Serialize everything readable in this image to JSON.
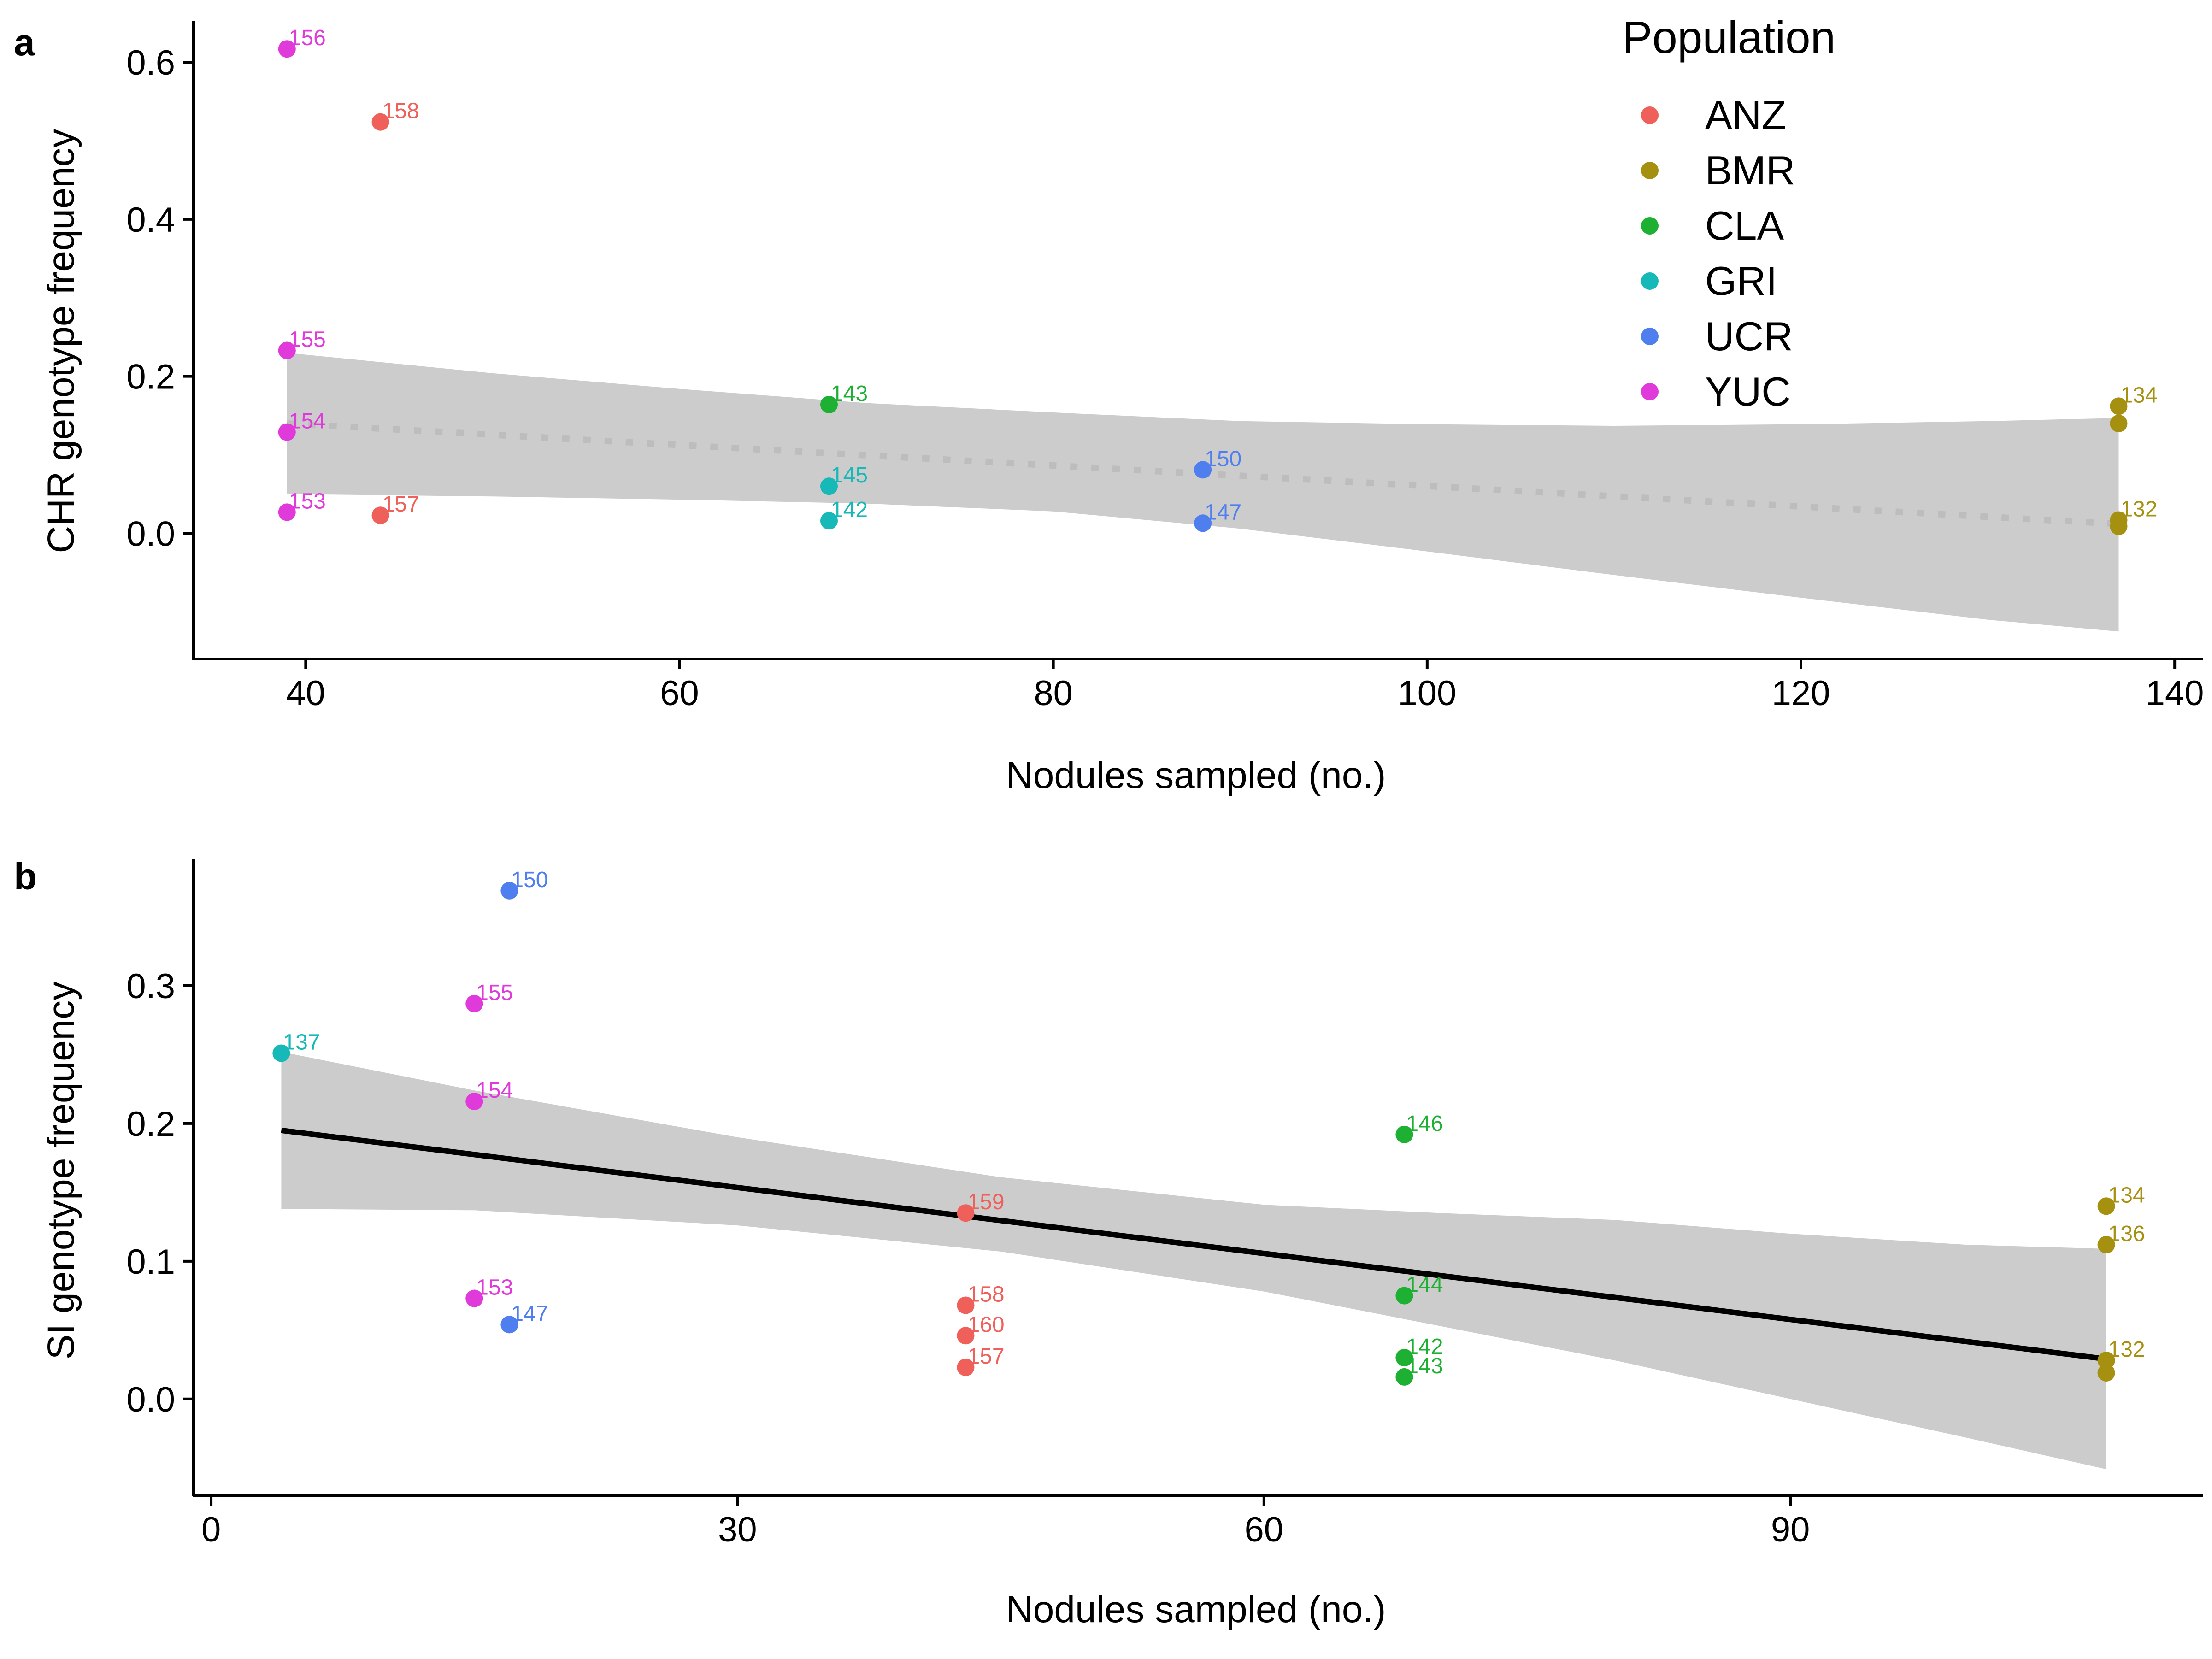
{
  "legend": {
    "title": "Population",
    "entries": [
      {
        "name": "ANZ",
        "color": "#F0605A"
      },
      {
        "name": "BMR",
        "color": "#A6900F"
      },
      {
        "name": "CLA",
        "color": "#1DB033"
      },
      {
        "name": "GRI",
        "color": "#17B8B8"
      },
      {
        "name": "UCR",
        "color": "#4F7EEE"
      },
      {
        "name": "YUC",
        "color": "#E13ADB"
      }
    ]
  },
  "chart_data": [
    {
      "type": "scatter",
      "panel": "a",
      "xlabel": "Nodules sampled (no.)",
      "ylabel": "CHR genotype frequency",
      "xlim": [
        34,
        141.5
      ],
      "ylim": [
        -0.16,
        0.65
      ],
      "xticks": [
        40,
        60,
        80,
        100,
        120,
        140
      ],
      "yticks": [
        0.0,
        0.2,
        0.4,
        0.6
      ],
      "ytick_labels": [
        "0.0",
        "0.2",
        "0.4",
        "0.6"
      ],
      "grid": false,
      "legend_position": "top-right",
      "points": [
        {
          "label": "156",
          "population": "YUC",
          "x": 39,
          "y": 0.617
        },
        {
          "label": "158",
          "population": "ANZ",
          "x": 44,
          "y": 0.524
        },
        {
          "label": "155",
          "population": "YUC",
          "x": 39,
          "y": 0.233
        },
        {
          "label": "154",
          "population": "YUC",
          "x": 39,
          "y": 0.129
        },
        {
          "label": "153",
          "population": "YUC",
          "x": 39,
          "y": 0.027
        },
        {
          "label": "157",
          "population": "ANZ",
          "x": 44,
          "y": 0.023
        },
        {
          "label": "143",
          "population": "CLA",
          "x": 68,
          "y": 0.164
        },
        {
          "label": "145",
          "population": "GRI",
          "x": 68,
          "y": 0.06
        },
        {
          "label": "142",
          "population": "GRI",
          "x": 68,
          "y": 0.016
        },
        {
          "label": "150",
          "population": "UCR",
          "x": 88,
          "y": 0.081
        },
        {
          "label": "147",
          "population": "UCR",
          "x": 88,
          "y": 0.013
        },
        {
          "label": "134",
          "population": "BMR",
          "x": 137,
          "y": 0.162
        },
        {
          "label": "",
          "population": "BMR",
          "x": 137,
          "y": 0.14
        },
        {
          "label": "132",
          "population": "BMR",
          "x": 137,
          "y": 0.017
        },
        {
          "label": "",
          "population": "BMR",
          "x": 137,
          "y": 0.009
        }
      ],
      "fit": {
        "style": "dotted",
        "color": "#bdbdbd",
        "x": [
          39,
          137
        ],
        "y": [
          0.14,
          0.012
        ]
      },
      "ci_band": {
        "color": "#cccccc",
        "x": [
          39,
          50,
          60,
          70,
          80,
          90,
          100,
          110,
          120,
          130,
          137
        ],
        "lower": [
          0.05,
          0.047,
          0.043,
          0.038,
          0.028,
          0.006,
          -0.023,
          -0.053,
          -0.082,
          -0.11,
          -0.125
        ],
        "upper": [
          0.23,
          0.204,
          0.184,
          0.166,
          0.154,
          0.143,
          0.139,
          0.137,
          0.139,
          0.143,
          0.147
        ]
      }
    },
    {
      "type": "scatter",
      "panel": "b",
      "xlabel": "Nodules sampled (no.)",
      "ylabel": "SI genotype frequency",
      "xlim": [
        -1,
        113.5
      ],
      "ylim": [
        -0.07,
        0.39
      ],
      "xticks": [
        0,
        30,
        60,
        90
      ],
      "yticks": [
        0.0,
        0.1,
        0.2,
        0.3
      ],
      "ytick_labels": [
        "0.0",
        "0.1",
        "0.2",
        "0.3"
      ],
      "grid": false,
      "points": [
        {
          "label": "150",
          "population": "UCR",
          "x": 17,
          "y": 0.369
        },
        {
          "label": "155",
          "population": "YUC",
          "x": 15,
          "y": 0.287
        },
        {
          "label": "137",
          "population": "GRI",
          "x": 4,
          "y": 0.251
        },
        {
          "label": "154",
          "population": "YUC",
          "x": 15,
          "y": 0.216
        },
        {
          "label": "153",
          "population": "YUC",
          "x": 15,
          "y": 0.073
        },
        {
          "label": "147",
          "population": "UCR",
          "x": 17,
          "y": 0.054
        },
        {
          "label": "159",
          "population": "ANZ",
          "x": 43,
          "y": 0.135
        },
        {
          "label": "158",
          "population": "ANZ",
          "x": 43,
          "y": 0.068
        },
        {
          "label": "160",
          "population": "ANZ",
          "x": 43,
          "y": 0.046
        },
        {
          "label": "157",
          "population": "ANZ",
          "x": 43,
          "y": 0.023
        },
        {
          "label": "146",
          "population": "CLA",
          "x": 68,
          "y": 0.192
        },
        {
          "label": "144",
          "population": "CLA",
          "x": 68,
          "y": 0.075
        },
        {
          "label": "142",
          "population": "CLA",
          "x": 68,
          "y": 0.03
        },
        {
          "label": "143",
          "population": "CLA",
          "x": 68,
          "y": 0.016
        },
        {
          "label": "134",
          "population": "BMR",
          "x": 108,
          "y": 0.14
        },
        {
          "label": "136",
          "population": "BMR",
          "x": 108,
          "y": 0.112
        },
        {
          "label": "132",
          "population": "BMR",
          "x": 108,
          "y": 0.028
        },
        {
          "label": "",
          "population": "BMR",
          "x": 108,
          "y": 0.019
        }
      ],
      "fit": {
        "style": "solid",
        "color": "#000000",
        "x": [
          4,
          108
        ],
        "y": [
          0.195,
          0.029
        ]
      },
      "ci_band": {
        "color": "#cccccc",
        "x": [
          4,
          15,
          30,
          45,
          60,
          70,
          80,
          90,
          100,
          108
        ],
        "lower": [
          0.138,
          0.137,
          0.126,
          0.107,
          0.078,
          0.053,
          0.028,
          0.0,
          -0.028,
          -0.051
        ],
        "upper": [
          0.252,
          0.224,
          0.19,
          0.161,
          0.141,
          0.135,
          0.13,
          0.12,
          0.112,
          0.109
        ]
      }
    }
  ]
}
